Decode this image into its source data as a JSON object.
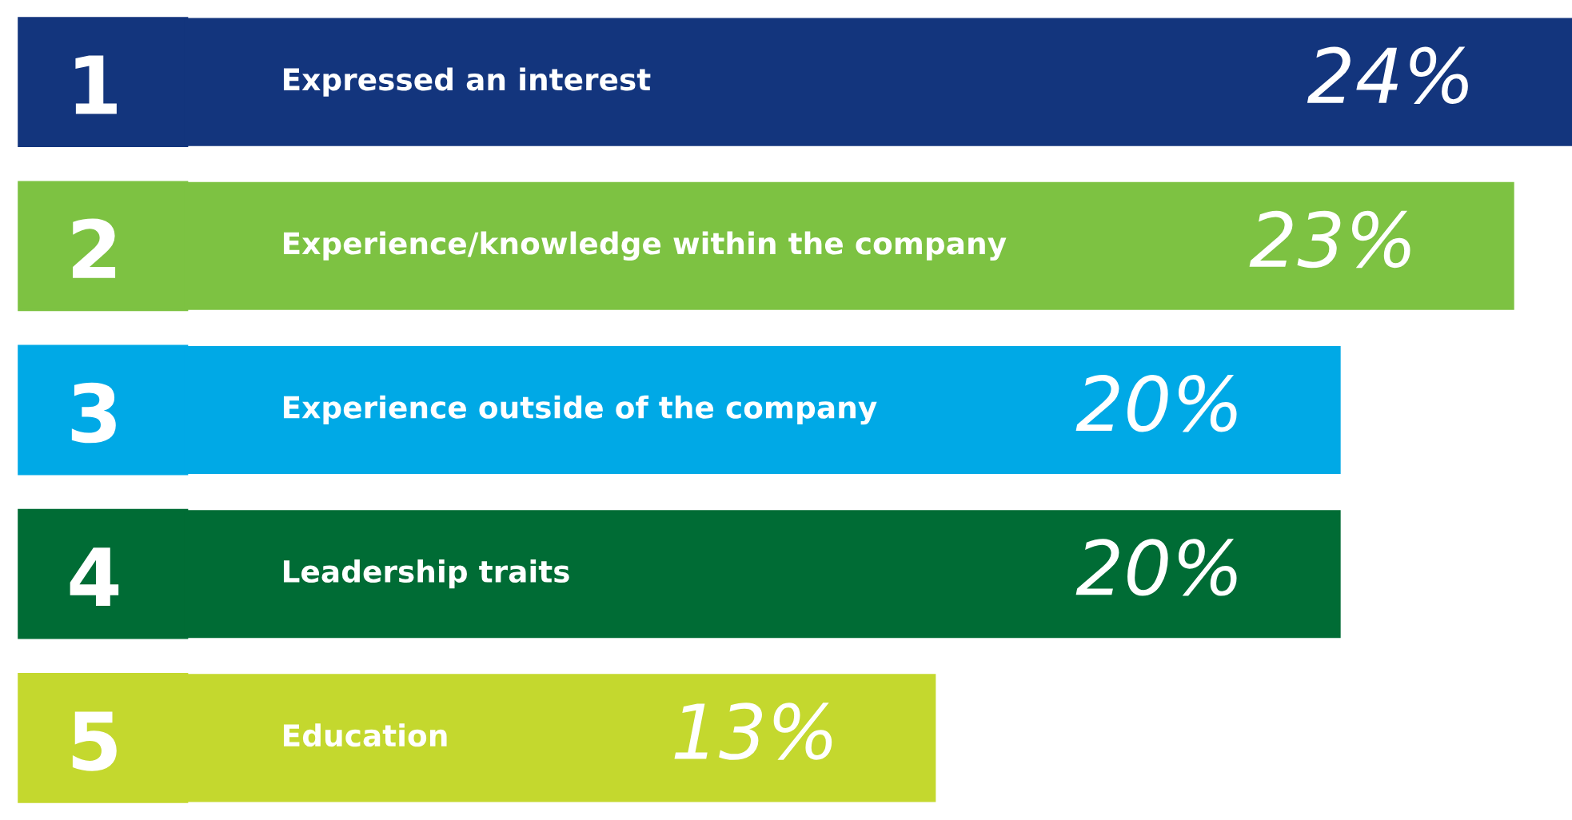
{
  "chart_data": {
    "type": "bar",
    "orientation": "horizontal",
    "categories": [
      "Expressed an interest",
      "Experience/knowledge within the company",
      "Experience outside of the company",
      "Leadership traits",
      "Education"
    ],
    "values": [
      24,
      23,
      20,
      20,
      13
    ],
    "value_labels": [
      "24%",
      "23%",
      "20%",
      "20%",
      "13%"
    ],
    "colors": [
      "#13357d",
      "#7dc242",
      "#00a9e6",
      "#006c35",
      "#c4d82e"
    ],
    "annotations": [
      "1",
      "2",
      "3",
      "4",
      "5"
    ],
    "tick_labels": false,
    "grid": false,
    "legend": false
  }
}
